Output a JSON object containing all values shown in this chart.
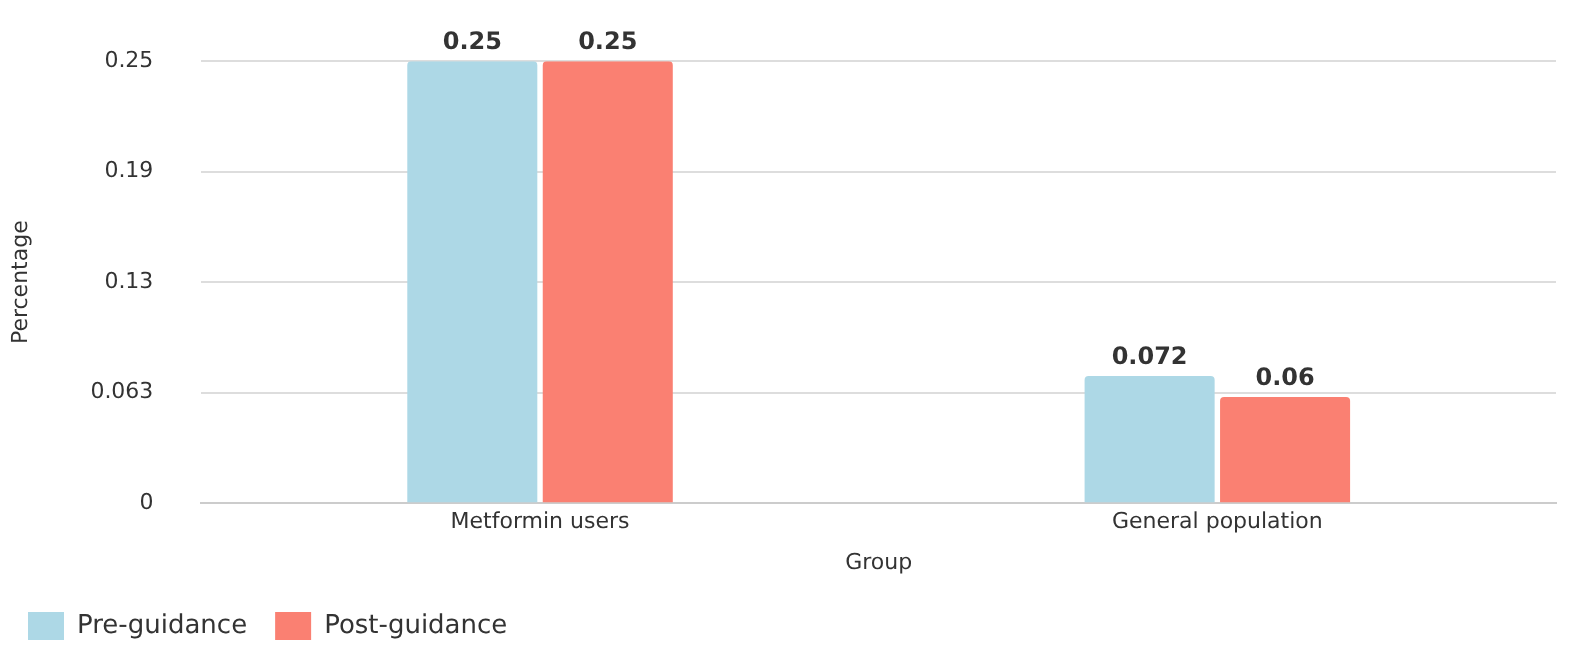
{
  "chart_data": {
    "type": "bar",
    "xlabel": "Group",
    "ylabel": "Percentage",
    "categories": [
      "Metformin users",
      "General population"
    ],
    "series": [
      {
        "name": "Pre-guidance",
        "color": "#add8e6",
        "values": [
          0.25,
          0.072
        ]
      },
      {
        "name": "Post-guidance",
        "color": "#fa8072",
        "values": [
          0.25,
          0.06
        ]
      }
    ],
    "ylim": [
      0,
      0.25
    ],
    "yticks": [
      0,
      {
        "value": 0.0625,
        "label": "0.063"
      },
      {
        "value": 0.125,
        "label": "0.13"
      },
      {
        "value": 0.1875,
        "label": "0.19"
      },
      0.25
    ],
    "grid": "y",
    "legend": "bottom left",
    "data_labels": true
  }
}
